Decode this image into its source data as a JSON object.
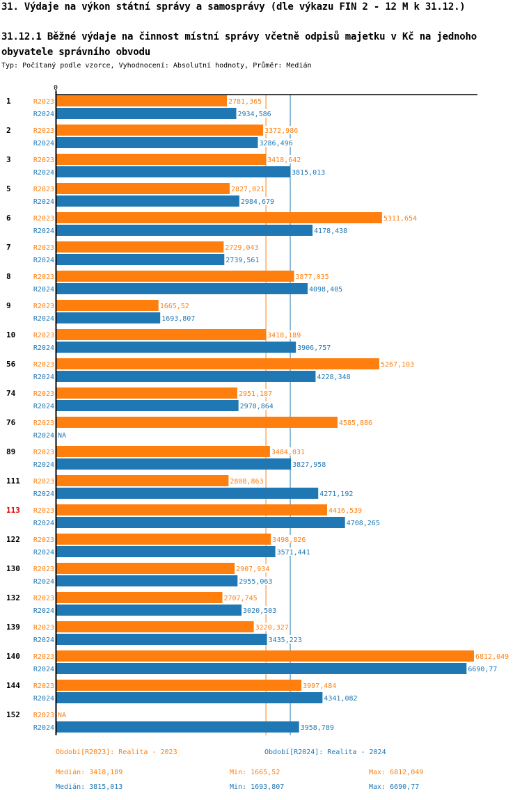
{
  "page": {
    "title": "31. Výdaje na výkon státní správy a samosprávy (dle výkazu FIN 2 - 12 M k 31.12.)",
    "subtitle": "31.12.1 Běžné výdaje na činnost místní správy včetně odpisů majetku v Kč na jednoho obyvatele správního obvodu",
    "info": "Typ: Počítaný podle vzorce, Vyhodnocení: Absolutní hodnoty, Průměr: Medián"
  },
  "colors": {
    "R2023": "#ff7f0e",
    "R2024": "#1f77b4",
    "highlight": "#e00000"
  },
  "chart_data": {
    "type": "bar",
    "orientation": "horizontal",
    "title": "31.12.1 Běžné výdaje na činnost místní správy včetně odpisů majetku v Kč na jednoho obyvatele správního obvodu",
    "xlabel": "",
    "ylabel": "",
    "x_tick_labels": [
      "0"
    ],
    "xlim": [
      0,
      6812.049
    ],
    "highlight_category": "113",
    "categories": [
      "1",
      "2",
      "3",
      "5",
      "6",
      "7",
      "8",
      "9",
      "10",
      "56",
      "74",
      "76",
      "89",
      "111",
      "113",
      "122",
      "130",
      "132",
      "139",
      "140",
      "144",
      "152"
    ],
    "series": [
      {
        "name": "R2023",
        "label": "Období[R2023]: Realita - 2023",
        "values": [
          2781.365,
          3372.986,
          3418.642,
          2827.021,
          5311.654,
          2729.043,
          3877.035,
          1665.52,
          3418.189,
          5267.103,
          2951.187,
          4585.886,
          3484.031,
          2808.863,
          4416.539,
          3498.826,
          2907.934,
          2707.745,
          3220.327,
          6812.049,
          3997.484,
          null
        ],
        "value_labels": [
          "2781,365",
          "3372,986",
          "3418,642",
          "2827,021",
          "5311,654",
          "2729,043",
          "3877,035",
          "1665,52",
          "3418,189",
          "5267,103",
          "2951,187",
          "4585,886",
          "3484,031",
          "2808,863",
          "4416,539",
          "3498,826",
          "2907,934",
          "2707,745",
          "3220,327",
          "6812,049",
          "3997,484",
          "NA"
        ],
        "median": 3418.189,
        "stats": {
          "median": "Medián: 3418,189",
          "min": "Min: 1665,52",
          "max": "Max: 6812,049"
        }
      },
      {
        "name": "R2024",
        "label": "Období[R2024]: Realita - 2024",
        "values": [
          2934.586,
          3286.496,
          3815.013,
          2984.679,
          4178.438,
          2739.561,
          4098.405,
          1693.807,
          3906.757,
          4228.348,
          2970.864,
          null,
          3827.958,
          4271.192,
          4708.265,
          3571.441,
          2955.063,
          3020.503,
          3435.223,
          6690.77,
          4341.082,
          3958.789
        ],
        "value_labels": [
          "2934,586",
          "3286,496",
          "3815,013",
          "2984,679",
          "4178,438",
          "2739,561",
          "4098,405",
          "1693,807",
          "3906,757",
          "4228,348",
          "2970,864",
          "NA",
          "3827,958",
          "4271,192",
          "4708,265",
          "3571,441",
          "2955,063",
          "3020,503",
          "3435,223",
          "6690,77",
          "4341,082",
          "3958,789"
        ],
        "median": 3815.013,
        "stats": {
          "median": "Medián: 3815,013",
          "min": "Min: 1693,807",
          "max": "Max: 6690,77"
        }
      }
    ]
  }
}
